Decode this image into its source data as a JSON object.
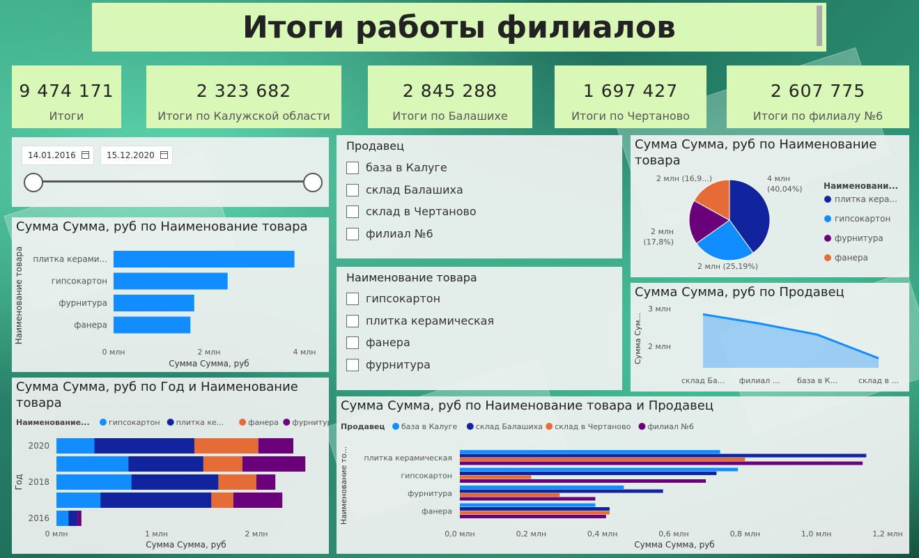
{
  "title": "Итоги работы филиалов",
  "kpis": [
    {
      "value": "9 474 171",
      "label": "Итоги"
    },
    {
      "value": "2 323 682",
      "label": "Итоги по Калужской области"
    },
    {
      "value": "2 845 288",
      "label": "Итоги по Балашихе"
    },
    {
      "value": "1 697 427",
      "label": "Итоги по Чертаново"
    },
    {
      "value": "2 607 775",
      "label": "Итоги по филиалу №6"
    }
  ],
  "date_slicer": {
    "start": "14.01.2016",
    "end": "15.12.2020"
  },
  "seller_slicer": {
    "title": "Продавец",
    "items": [
      "база в Калуге",
      "склад Балашиха",
      "склад в Чертаново",
      "филиал №6"
    ]
  },
  "product_slicer": {
    "title": "Наименование товара",
    "items": [
      "гипсокартон",
      "плитка керамическая",
      "фанера",
      "фурнитура"
    ]
  },
  "colors": {
    "light_blue": "#118dff",
    "dark_blue": "#12239e",
    "orange": "#e66c37",
    "purple": "#6b007b",
    "bar_blue": "#118dff",
    "area_blue": "#118dff"
  },
  "chart_data": [
    {
      "id": "bar_by_product",
      "type": "bar",
      "title": "Сумма Сумма, руб по Наименование товара",
      "xlabel": "Сумма Сумма, руб",
      "ylabel": "Наименование товара",
      "categories": [
        "плитка керами...",
        "гипсокартон",
        "фурнитура",
        "фанера"
      ],
      "values": [
        3.79,
        2.39,
        1.69,
        1.61
      ],
      "xlim": [
        0,
        4
      ],
      "xticks": [
        "0 млн",
        "2 млн",
        "4 млн"
      ]
    },
    {
      "id": "stacked_by_year",
      "type": "bar",
      "title": "Сумма Сумма, руб по Год и Наименование товара",
      "legend_title": "Наименование...",
      "xlabel": "Сумма Сумма, руб",
      "ylabel": "Год",
      "categories": [
        "2020",
        "2019",
        "2018",
        "2017",
        "2016"
      ],
      "ytick_labels": [
        "2020",
        "",
        "2018",
        "",
        "2016"
      ],
      "series": [
        {
          "name": "гипсокартон",
          "values": [
            0.38,
            0.72,
            0.75,
            0.44,
            0.12
          ]
        },
        {
          "name": "плитка ке...",
          "values": [
            1.0,
            0.75,
            0.87,
            1.11,
            0.09
          ]
        },
        {
          "name": "фанера",
          "values": [
            0.64,
            0.39,
            0.38,
            0.22,
            0.0
          ]
        },
        {
          "name": "фурнитура",
          "values": [
            0.35,
            0.63,
            0.19,
            0.49,
            0.04
          ]
        }
      ],
      "xlim": [
        0,
        2.6
      ],
      "xticks": [
        "0 млн",
        "1 млн",
        "2 млн"
      ]
    },
    {
      "id": "pie_by_product",
      "type": "pie",
      "title": "Сумма Сумма, руб по Наименование товара",
      "legend_title": "Наименовани...",
      "slices": [
        {
          "name": "плитка кера...",
          "value": 40.04,
          "label": "4 млн\n(40,04%)"
        },
        {
          "name": "гипсокартон",
          "value": 25.19,
          "label": "2 млн (25,19%)"
        },
        {
          "name": "фурнитура",
          "value": 17.8,
          "label": "2 млн\n(17,8%)"
        },
        {
          "name": "фанера",
          "value": 16.97,
          "label": "2 млн (16,9...)"
        }
      ]
    },
    {
      "id": "area_by_seller",
      "type": "area",
      "title": "Сумма Сумма, руб по Продавец",
      "ylabel": "Сумма Сум...",
      "categories": [
        "склад Ба...",
        "филиал ...",
        "база в К...",
        "склад в ..."
      ],
      "values": [
        2.85,
        2.61,
        2.32,
        1.7
      ],
      "ylim": [
        1.45,
        3.0
      ],
      "yticks": [
        "3 млн",
        "2 млн"
      ]
    },
    {
      "id": "clustered_by_product_seller",
      "type": "bar",
      "title": "Сумма Сумма, руб по Наименование товара и Продавец",
      "legend_title": "Продавец",
      "xlabel": "Сумма Сумма, руб",
      "ylabel": "Наименование то...",
      "categories": [
        "плитка керамическая",
        "гипсокартон",
        "фурнитура",
        "фанера"
      ],
      "series": [
        {
          "name": "база в Калуге",
          "values": [
            0.73,
            0.78,
            0.46,
            0.38
          ]
        },
        {
          "name": "склад Балашиха",
          "values": [
            1.14,
            0.72,
            0.57,
            0.42
          ]
        },
        {
          "name": "склад в Чертаново",
          "values": [
            0.8,
            0.2,
            0.28,
            0.42
          ]
        },
        {
          "name": "филиал №6",
          "values": [
            1.13,
            0.69,
            0.38,
            0.41
          ]
        }
      ],
      "xlim": [
        0,
        1.2
      ],
      "xticks": [
        "0,0 млн",
        "0,2 млн",
        "0,4 млн",
        "0,6 млн",
        "0,8 млн",
        "1,0 млн",
        "1,2 млн"
      ]
    }
  ]
}
